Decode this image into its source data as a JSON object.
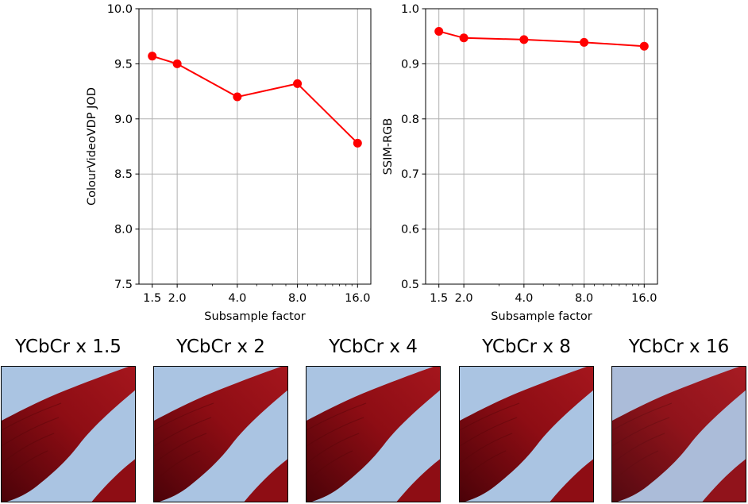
{
  "chart_data": [
    {
      "type": "line",
      "title": "",
      "xlabel": "Subsample factor",
      "ylabel": "ColourVideoVDP JOD",
      "xscale": "log",
      "x": [
        1.5,
        2.0,
        4.0,
        8.0,
        16.0
      ],
      "x_tick_labels": [
        "1.5",
        "2.0",
        "4.0",
        "8.0",
        "16.0"
      ],
      "series": [
        {
          "name": "ColourVideoVDP JOD",
          "values": [
            9.57,
            9.5,
            9.2,
            9.32,
            8.78
          ],
          "color": "#ff0000"
        }
      ],
      "ylim": [
        7.5,
        10.0
      ],
      "y_ticks": [
        7.5,
        8.0,
        8.5,
        9.0,
        9.5,
        10.0
      ],
      "y_tick_labels": [
        "7.5",
        "8.0",
        "8.5",
        "9.0",
        "9.5",
        "10.0"
      ],
      "grid": true
    },
    {
      "type": "line",
      "title": "",
      "xlabel": "Subsample factor",
      "ylabel": "SSIM-RGB",
      "xscale": "log",
      "x": [
        1.5,
        2.0,
        4.0,
        8.0,
        16.0
      ],
      "x_tick_labels": [
        "1.5",
        "2.0",
        "4.0",
        "8.0",
        "16.0"
      ],
      "series": [
        {
          "name": "SSIM-RGB",
          "values": [
            0.959,
            0.947,
            0.944,
            0.939,
            0.932
          ],
          "color": "#ff0000"
        }
      ],
      "ylim": [
        0.5,
        1.0
      ],
      "y_ticks": [
        0.5,
        0.6,
        0.7,
        0.8,
        0.9,
        1.0
      ],
      "y_tick_labels": [
        "0.5",
        "0.6",
        "0.7",
        "0.8",
        "0.9",
        "1.0"
      ],
      "grid": true
    }
  ],
  "tiles": [
    {
      "title": "YCbCr x 1.5",
      "factor": 1.5
    },
    {
      "title": "YCbCr x 2",
      "factor": 2
    },
    {
      "title": "YCbCr x 4",
      "factor": 4
    },
    {
      "title": "YCbCr x 8",
      "factor": 8
    },
    {
      "title": "YCbCr x 16",
      "factor": 16
    }
  ],
  "colors": {
    "series": "#ff0000",
    "grid": "#b0b0b0",
    "sky": "#aac4e2",
    "fabric": "#8e0d14",
    "fabric_dark": "#4a0208"
  }
}
